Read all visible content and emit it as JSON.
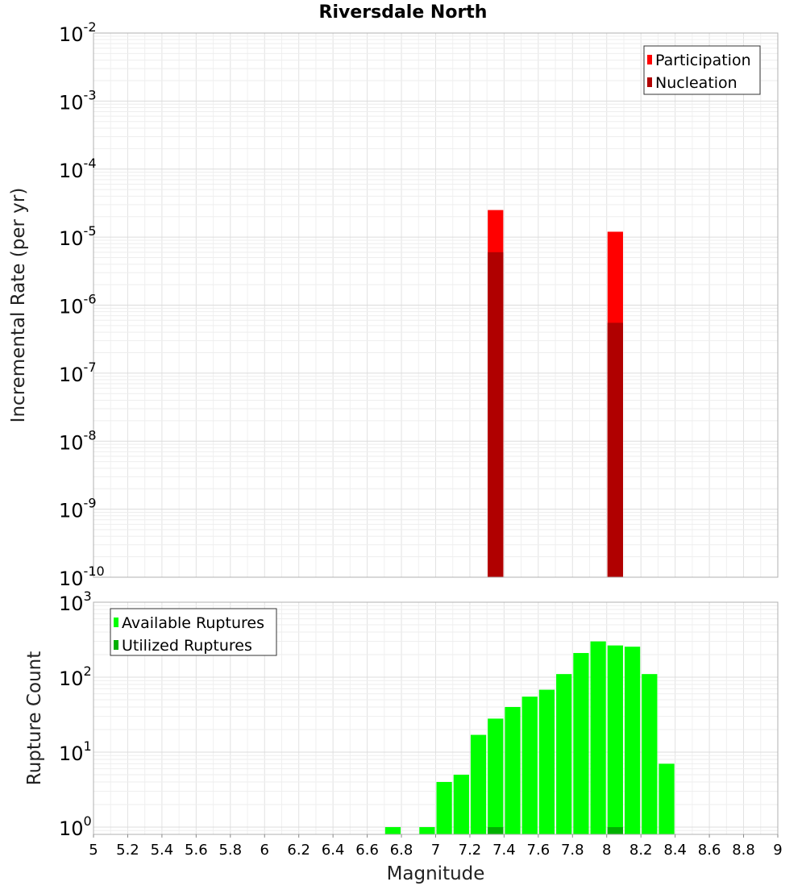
{
  "chart_data": [
    {
      "type": "bar",
      "title": "Riversdale North",
      "xlabel": "",
      "ylabel": "Incremental Rate (per yr)",
      "yscale": "log",
      "ylim": [
        1e-10,
        0.01
      ],
      "xlim": [
        5,
        9
      ],
      "y_tick_labels": [
        {
          "base": "10",
          "exp": "-10"
        },
        {
          "base": "10",
          "exp": "-9"
        },
        {
          "base": "10",
          "exp": "-8"
        },
        {
          "base": "10",
          "exp": "-7"
        },
        {
          "base": "10",
          "exp": "-6"
        },
        {
          "base": "10",
          "exp": "-5"
        },
        {
          "base": "10",
          "exp": "-4"
        },
        {
          "base": "10",
          "exp": "-3"
        },
        {
          "base": "10",
          "exp": "-2"
        }
      ],
      "bin_width": 0.1,
      "legend_position": "top-right",
      "legend": [
        "Participation",
        "Nucleation"
      ],
      "series": [
        {
          "name": "Participation",
          "color": "#ff0000",
          "points": [
            {
              "x": 7.35,
              "y": 2.5e-05
            },
            {
              "x": 8.05,
              "y": 1.2e-05
            }
          ]
        },
        {
          "name": "Nucleation",
          "color": "#b00000",
          "points": [
            {
              "x": 7.35,
              "y": 6e-06
            },
            {
              "x": 8.05,
              "y": 5.5e-07
            }
          ]
        }
      ],
      "grid": true
    },
    {
      "type": "bar",
      "title": "",
      "xlabel": "Magnitude",
      "ylabel": "Rupture Count",
      "yscale": "log",
      "ylim": [
        0.8,
        1000
      ],
      "xlim": [
        5,
        9
      ],
      "x_ticks": [
        "5",
        "5.2",
        "5.4",
        "5.6",
        "5.8",
        "6",
        "6.2",
        "6.4",
        "6.6",
        "6.8",
        "7",
        "7.2",
        "7.4",
        "7.6",
        "7.8",
        "8",
        "8.2",
        "8.4",
        "8.6",
        "8.8",
        "9"
      ],
      "y_tick_labels": [
        {
          "base": "10",
          "exp": "0"
        },
        {
          "base": "10",
          "exp": "1"
        },
        {
          "base": "10",
          "exp": "2"
        },
        {
          "base": "10",
          "exp": "3"
        }
      ],
      "bin_width": 0.1,
      "legend_position": "top-left",
      "legend": [
        "Available Ruptures",
        "Utilized Ruptures"
      ],
      "series": [
        {
          "name": "Available Ruptures",
          "color": "#00ff00",
          "points": [
            {
              "x": 6.75,
              "y": 1
            },
            {
              "x": 6.95,
              "y": 1
            },
            {
              "x": 7.05,
              "y": 4
            },
            {
              "x": 7.15,
              "y": 5
            },
            {
              "x": 7.25,
              "y": 17
            },
            {
              "x": 7.35,
              "y": 28
            },
            {
              "x": 7.45,
              "y": 40
            },
            {
              "x": 7.55,
              "y": 55
            },
            {
              "x": 7.65,
              "y": 68
            },
            {
              "x": 7.75,
              "y": 110
            },
            {
              "x": 7.85,
              "y": 210
            },
            {
              "x": 7.95,
              "y": 300
            },
            {
              "x": 8.05,
              "y": 265
            },
            {
              "x": 8.15,
              "y": 255
            },
            {
              "x": 8.25,
              "y": 110
            },
            {
              "x": 8.35,
              "y": 7
            }
          ]
        },
        {
          "name": "Utilized Ruptures",
          "color": "#00b000",
          "points": [
            {
              "x": 7.35,
              "y": 1
            },
            {
              "x": 8.05,
              "y": 1
            }
          ]
        }
      ],
      "grid": true
    }
  ]
}
